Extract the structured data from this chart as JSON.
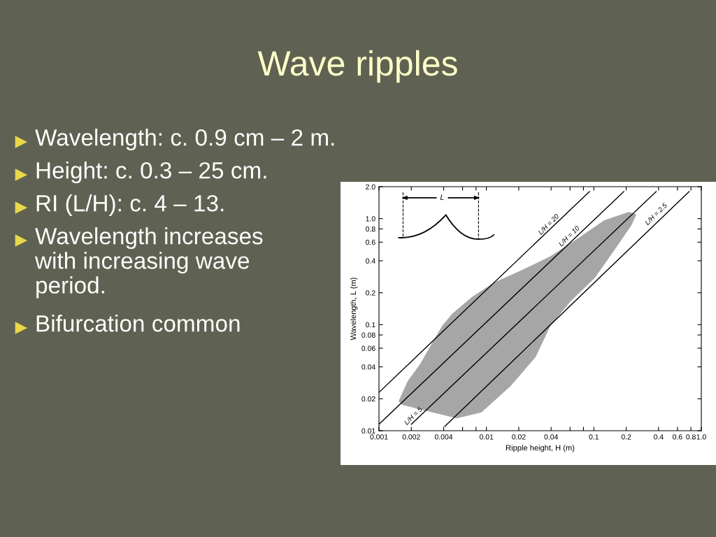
{
  "chart_data": {
    "type": "line",
    "title": "Wave ripples",
    "xlabel": "Ripple height, H (m)",
    "ylabel": "Wavelength, L (m)",
    "log": "xy",
    "grid": false,
    "xlim": [
      0.001,
      1
    ],
    "ylim": [
      0.01,
      2
    ],
    "xticks": [
      0.001,
      0.002,
      0.004,
      {
        "value": 0.006,
        "label": null
      },
      {
        "value": 0.008,
        "label": null
      },
      0.01,
      0.02,
      0.04,
      {
        "value": 0.06,
        "label": null
      },
      {
        "value": 0.08,
        "label": null
      },
      0.1,
      0.2,
      0.4,
      0.6,
      0.8,
      {
        "value": 1,
        "label": "1.0"
      }
    ],
    "yticks": [
      0.01,
      0.02,
      0.04,
      0.06,
      0.08,
      0.1,
      0.2,
      0.4,
      0.6,
      0.8,
      {
        "value": 1,
        "label": "1.0"
      },
      {
        "value": 2,
        "label": "2.0"
      }
    ],
    "series": [
      {
        "type": "area",
        "color": "#a6a6a6",
        "x": [
          0.00152,
          0.00185,
          0.00241,
          0.00314,
          0.00387,
          0.00478,
          0.0073,
          0.0117,
          0.0209,
          0.0394,
          0.0741,
          0.125,
          0.212,
          0.249,
          0.224,
          0.163,
          0.102,
          0.06,
          0.0394,
          0.0287,
          0.0169,
          0.009,
          0.00531,
          0.00314,
          0.00167
        ],
        "values": [
          0.0189,
          0.0294,
          0.0424,
          0.0676,
          0.0975,
          0.126,
          0.182,
          0.249,
          0.323,
          0.442,
          0.67,
          0.964,
          1.16,
          1.1,
          0.869,
          0.543,
          0.276,
          0.164,
          0.0975,
          0.0495,
          0.0265,
          0.0149,
          0.0131,
          0.0149,
          0.0175
        ]
      },
      {
        "color": "#000000",
        "x": [
          0.001,
          0.091
        ],
        "values": [
          0.023,
          1.8
        ]
      },
      {
        "color": "#000000",
        "x": [
          0.001,
          0.19
        ],
        "values": [
          0.0115,
          1.8
        ]
      },
      {
        "color": "#000000",
        "x": [
          0.002,
          0.38
        ],
        "values": [
          0.0115,
          1.8
        ]
      },
      {
        "color": "#000000",
        "x": [
          0.0041,
          0.77
        ],
        "values": [
          0.011,
          1.8
        ]
      }
    ],
    "annotations": [
      "Wavelength: c. 0.9 cm – 2 m.",
      "Height: c. 0.3 – 25 cm.",
      "RI (L/H): c. 4 – 13.",
      "Wavelength increases\nwith increasing wave\nperiod.",
      "Bifurcation common",
      "L",
      {
        "text": "L/H = 20",
        "x": 0.04,
        "y": 0.8
      },
      {
        "text": "L/H = 10",
        "x": 0.062,
        "y": 0.62
      },
      {
        "text": "L/H = 5",
        "x": 0.0022,
        "y": 0.0125
      },
      {
        "text": "L/H = 2.5",
        "x": 0.4,
        "y": 1.0
      }
    ]
  }
}
